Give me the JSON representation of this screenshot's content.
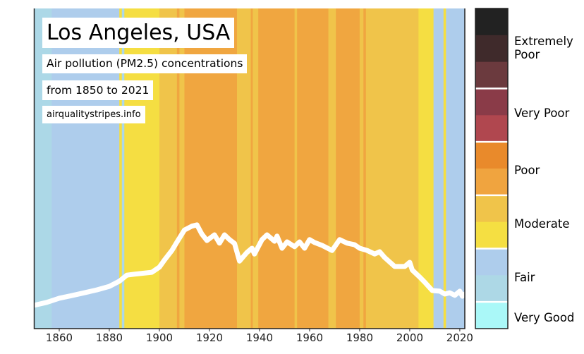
{
  "chart_data": {
    "type": "line",
    "title": "Los Angeles, USA",
    "subtitle": "Air pollution (PM2.5) concentrations",
    "period": "from 1850 to 2021",
    "source": "airqualitystripes.info",
    "xlabel": "",
    "ylabel": "",
    "xlim": [
      1850,
      2022
    ],
    "ylim": [
      0,
      100
    ],
    "xticks": [
      "1860",
      "1880",
      "1900",
      "1920",
      "1940",
      "1960",
      "1980",
      "2000",
      "2020"
    ],
    "line": {
      "color": "#ffffff",
      "x": [
        1850,
        1855,
        1860,
        1865,
        1870,
        1875,
        1880,
        1884,
        1887,
        1890,
        1897,
        1900,
        1902,
        1905,
        1907,
        1910,
        1913,
        1915,
        1917,
        1919,
        1922,
        1924,
        1926,
        1928,
        1930,
        1932,
        1935,
        1937,
        1938,
        1941,
        1943,
        1946,
        1947,
        1949,
        1951,
        1954,
        1956,
        1958,
        1960,
        1962,
        1965,
        1969,
        1972,
        1975,
        1978,
        1980,
        1983,
        1986,
        1988,
        1990,
        1994,
        1998,
        2000,
        2001,
        2004,
        2006,
        2009,
        2012,
        2014,
        2016,
        2018,
        2020,
        2021,
        2022
      ],
      "y": [
        7.3,
        8.2,
        9.5,
        10.3,
        11.2,
        12.1,
        13.2,
        14.8,
        16.7,
        17.0,
        17.6,
        19.2,
        21.4,
        24.4,
        27.0,
        30.8,
        32.0,
        32.4,
        29.5,
        27.5,
        29.3,
        26.7,
        29.3,
        27.8,
        26.6,
        21.1,
        23.8,
        25.1,
        23.3,
        27.8,
        29.3,
        27.3,
        28.9,
        25.1,
        27.1,
        25.6,
        27.1,
        25.1,
        27.8,
        26.9,
        26.0,
        24.4,
        27.8,
        26.7,
        26.2,
        25.1,
        24.4,
        23.3,
        24.0,
        22.2,
        19.4,
        19.4,
        20.7,
        18.3,
        16.1,
        14.5,
        11.9,
        11.7,
        10.8,
        11.2,
        10.4,
        11.7,
        10.1,
        10.8
      ]
    },
    "stripes": [
      {
        "from": 1850,
        "to": 1857,
        "category": "Fair (low)"
      },
      {
        "from": 1857,
        "to": 1884,
        "category": "Fair"
      },
      {
        "from": 1884,
        "to": 1885,
        "category": "Moderate (low)"
      },
      {
        "from": 1885,
        "to": 1886,
        "category": "Fair (low)"
      },
      {
        "from": 1886,
        "to": 1900,
        "category": "Moderate (low)"
      },
      {
        "from": 1900,
        "to": 1907,
        "category": "Moderate"
      },
      {
        "from": 1907,
        "to": 1908,
        "category": "Poor (low)"
      },
      {
        "from": 1908,
        "to": 1910,
        "category": "Moderate"
      },
      {
        "from": 1910,
        "to": 1931,
        "category": "Poor (low)"
      },
      {
        "from": 1931,
        "to": 1936.5,
        "category": "Moderate"
      },
      {
        "from": 1936.5,
        "to": 1937.3,
        "category": "Poor (low)"
      },
      {
        "from": 1937.3,
        "to": 1939.5,
        "category": "Moderate"
      },
      {
        "from": 1939.5,
        "to": 1954,
        "category": "Poor (low)"
      },
      {
        "from": 1954,
        "to": 1955,
        "category": "Moderate"
      },
      {
        "from": 1955,
        "to": 1967.5,
        "category": "Poor (low)"
      },
      {
        "from": 1967.5,
        "to": 1970.5,
        "category": "Moderate"
      },
      {
        "from": 1970.5,
        "to": 1980,
        "category": "Poor (low)"
      },
      {
        "from": 1980,
        "to": 1981.5,
        "category": "Moderate"
      },
      {
        "from": 1981.5,
        "to": 1982.5,
        "category": "Poor (low)"
      },
      {
        "from": 1982.5,
        "to": 2003.5,
        "category": "Moderate"
      },
      {
        "from": 2003.5,
        "to": 2009.5,
        "category": "Moderate (low)"
      },
      {
        "from": 2009.5,
        "to": 2013.5,
        "category": "Fair"
      },
      {
        "from": 2013.5,
        "to": 2014.5,
        "category": "Moderate (low)"
      },
      {
        "from": 2014.5,
        "to": 2022,
        "category": "Fair"
      }
    ],
    "colors": {
      "Fair (low)": "#acd8e7",
      "Fair": "#aecdec",
      "Moderate (low)": "#f5de42",
      "Moderate": "#f0c44a",
      "Poor (low)": "#f0a640"
    },
    "colorbar": {
      "bands": [
        "#222222",
        "#3f2a2b",
        "#6b3a3e",
        "#8a3b48",
        "#b0474f",
        "#e98a2b",
        "#f0a43f",
        "#f0c44a",
        "#f5df42",
        "#aecdec",
        "#add8e6",
        "#aaf8f8"
      ],
      "labels": [
        "Extremely Poor",
        "Very Poor",
        "Poor",
        "Moderate",
        "Fair",
        "Very Good"
      ]
    }
  }
}
